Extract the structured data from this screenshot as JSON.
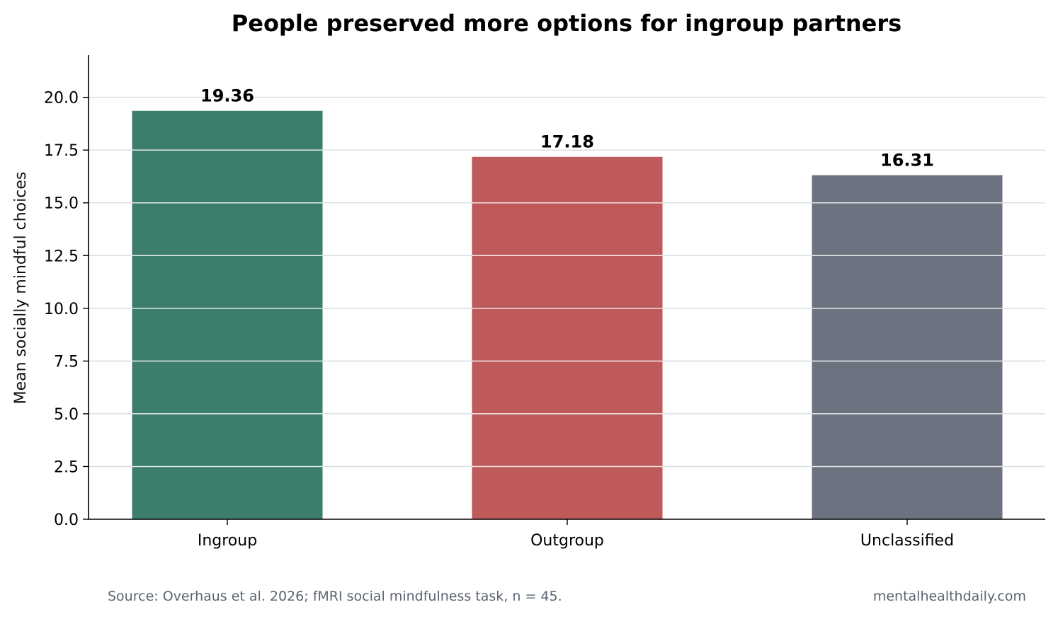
{
  "chart_data": {
    "type": "bar",
    "title": "People preserved more options for ingroup partners",
    "xlabel": "",
    "ylabel": "Mean socially mindful choices",
    "categories": [
      "Ingroup",
      "Outgroup",
      "Unclassified"
    ],
    "values": [
      19.36,
      17.18,
      16.31
    ],
    "value_labels": [
      "19.36",
      "17.18",
      "16.31"
    ],
    "colors": [
      "#3d7d6b",
      "#be5a5a",
      "#6c7280"
    ],
    "ylim": [
      0,
      22
    ],
    "yticks": [
      0.0,
      2.5,
      5.0,
      7.5,
      10.0,
      12.5,
      15.0,
      17.5,
      20.0
    ],
    "ytick_labels": [
      "0.0",
      "2.5",
      "5.0",
      "7.5",
      "10.0",
      "12.5",
      "15.0",
      "17.5",
      "20.0"
    ],
    "grid": "y",
    "gridline_color": "#d9dde6"
  },
  "footer": {
    "source": "Source: Overhaus et al. 2026; fMRI social mindfulness task, n = 45.",
    "site": "mentalhealthdaily.com"
  }
}
